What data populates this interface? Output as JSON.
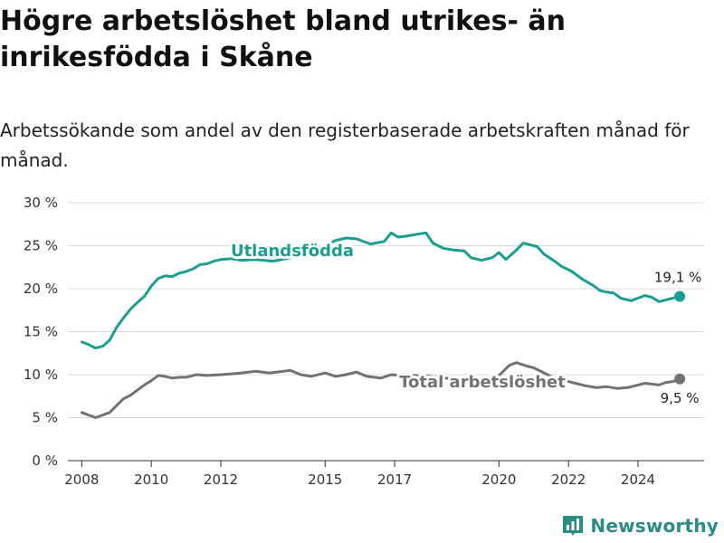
{
  "title": "Högre arbetslöshet bland utrikes- än inrikesfödda i Skåne",
  "subtitle": "Arbetssökande som andel av den registerbaserade arbetskraften månad för månad.",
  "brand": "Newsworthy",
  "colors": {
    "utlandsfodda": "#1a9e91",
    "total": "#727176",
    "grid": "#d9d9d9"
  },
  "chart_data": {
    "type": "line",
    "title": "Högre arbetslöshet bland utrikes- än inrikesfödda i Skåne",
    "subtitle": "Arbetssökande som andel av den registerbaserade arbetskraften månad för månad.",
    "xlabel": "",
    "ylabel": "",
    "xlim": [
      2007.6,
      2025.9
    ],
    "ylim": [
      0,
      30
    ],
    "yticks": [
      0,
      5,
      10,
      15,
      20,
      25,
      30
    ],
    "ytick_labels": [
      "0 %",
      "5 %",
      "10 %",
      "15 %",
      "20 %",
      "25 %",
      "30 %"
    ],
    "xticks": [
      2008,
      2010,
      2012,
      2015,
      2017,
      2020,
      2022,
      2024
    ],
    "xtick_labels": [
      "2008",
      "2010",
      "2012",
      "2015",
      "2017",
      "2020",
      "2022",
      "2024"
    ],
    "grid": true,
    "series": [
      {
        "name": "Utlandsfödda",
        "color": "#1a9e91",
        "end_label": "19,1 %",
        "points": [
          [
            2008.0,
            13.8
          ],
          [
            2008.2,
            13.5
          ],
          [
            2008.4,
            13.1
          ],
          [
            2008.6,
            13.3
          ],
          [
            2008.8,
            14.0
          ],
          [
            2009.0,
            15.5
          ],
          [
            2009.2,
            16.6
          ],
          [
            2009.4,
            17.6
          ],
          [
            2009.6,
            18.4
          ],
          [
            2009.8,
            19.1
          ],
          [
            2010.0,
            20.3
          ],
          [
            2010.2,
            21.2
          ],
          [
            2010.4,
            21.5
          ],
          [
            2010.6,
            21.4
          ],
          [
            2010.8,
            21.8
          ],
          [
            2011.0,
            22.0
          ],
          [
            2011.2,
            22.3
          ],
          [
            2011.4,
            22.8
          ],
          [
            2011.6,
            22.9
          ],
          [
            2011.8,
            23.2
          ],
          [
            2012.0,
            23.4
          ],
          [
            2012.3,
            23.5
          ],
          [
            2012.6,
            23.3
          ],
          [
            2013.0,
            23.4
          ],
          [
            2013.5,
            23.2
          ],
          [
            2014.0,
            23.6
          ],
          [
            2014.5,
            24.4
          ],
          [
            2015.0,
            25.0
          ],
          [
            2015.3,
            25.6
          ],
          [
            2015.6,
            25.9
          ],
          [
            2015.9,
            25.8
          ],
          [
            2016.3,
            25.2
          ],
          [
            2016.7,
            25.5
          ],
          [
            2016.9,
            26.5
          ],
          [
            2017.1,
            26.0
          ],
          [
            2017.3,
            26.1
          ],
          [
            2017.6,
            26.3
          ],
          [
            2017.9,
            26.5
          ],
          [
            2018.1,
            25.3
          ],
          [
            2018.4,
            24.7
          ],
          [
            2018.7,
            24.5
          ],
          [
            2019.0,
            24.4
          ],
          [
            2019.2,
            23.6
          ],
          [
            2019.5,
            23.3
          ],
          [
            2019.8,
            23.6
          ],
          [
            2020.0,
            24.2
          ],
          [
            2020.2,
            23.4
          ],
          [
            2020.5,
            24.5
          ],
          [
            2020.7,
            25.3
          ],
          [
            2020.9,
            25.1
          ],
          [
            2021.1,
            24.9
          ],
          [
            2021.3,
            24.0
          ],
          [
            2021.6,
            23.2
          ],
          [
            2021.8,
            22.6
          ],
          [
            2022.1,
            22.0
          ],
          [
            2022.4,
            21.1
          ],
          [
            2022.7,
            20.4
          ],
          [
            2022.9,
            19.8
          ],
          [
            2023.1,
            19.6
          ],
          [
            2023.3,
            19.5
          ],
          [
            2023.5,
            18.9
          ],
          [
            2023.8,
            18.6
          ],
          [
            2024.0,
            18.9
          ],
          [
            2024.2,
            19.2
          ],
          [
            2024.4,
            19.0
          ],
          [
            2024.6,
            18.5
          ],
          [
            2024.8,
            18.7
          ],
          [
            2025.0,
            18.9
          ],
          [
            2025.2,
            19.1
          ]
        ]
      },
      {
        "name": "Total arbetslöshet",
        "color": "#727176",
        "end_label": "9,5 %",
        "points": [
          [
            2008.0,
            5.6
          ],
          [
            2008.2,
            5.3
          ],
          [
            2008.4,
            5.0
          ],
          [
            2008.6,
            5.3
          ],
          [
            2008.8,
            5.6
          ],
          [
            2009.0,
            6.4
          ],
          [
            2009.2,
            7.2
          ],
          [
            2009.4,
            7.6
          ],
          [
            2009.6,
            8.2
          ],
          [
            2009.8,
            8.8
          ],
          [
            2010.0,
            9.3
          ],
          [
            2010.2,
            9.9
          ],
          [
            2010.4,
            9.8
          ],
          [
            2010.6,
            9.6
          ],
          [
            2010.8,
            9.7
          ],
          [
            2011.0,
            9.7
          ],
          [
            2011.3,
            10.0
          ],
          [
            2011.6,
            9.9
          ],
          [
            2012.0,
            10.0
          ],
          [
            2012.3,
            10.1
          ],
          [
            2012.6,
            10.2
          ],
          [
            2013.0,
            10.4
          ],
          [
            2013.4,
            10.2
          ],
          [
            2013.8,
            10.4
          ],
          [
            2014.0,
            10.5
          ],
          [
            2014.3,
            10.0
          ],
          [
            2014.6,
            9.8
          ],
          [
            2015.0,
            10.2
          ],
          [
            2015.3,
            9.8
          ],
          [
            2015.6,
            10.0
          ],
          [
            2015.9,
            10.3
          ],
          [
            2016.2,
            9.8
          ],
          [
            2016.6,
            9.6
          ],
          [
            2016.9,
            10.0
          ],
          [
            2017.2,
            9.9
          ],
          [
            2017.6,
            9.9
          ],
          [
            2018.0,
            9.8
          ],
          [
            2018.4,
            9.6
          ],
          [
            2018.8,
            9.5
          ],
          [
            2019.2,
            9.4
          ],
          [
            2019.6,
            9.5
          ],
          [
            2020.0,
            9.9
          ],
          [
            2020.3,
            11.1
          ],
          [
            2020.5,
            11.4
          ],
          [
            2020.8,
            11.0
          ],
          [
            2021.0,
            10.8
          ],
          [
            2021.3,
            10.2
          ],
          [
            2021.6,
            9.6
          ],
          [
            2021.9,
            9.3
          ],
          [
            2022.2,
            9.0
          ],
          [
            2022.5,
            8.7
          ],
          [
            2022.8,
            8.5
          ],
          [
            2023.1,
            8.6
          ],
          [
            2023.4,
            8.4
          ],
          [
            2023.7,
            8.5
          ],
          [
            2024.0,
            8.8
          ],
          [
            2024.2,
            9.0
          ],
          [
            2024.4,
            8.9
          ],
          [
            2024.6,
            8.8
          ],
          [
            2024.8,
            9.1
          ],
          [
            2025.0,
            9.2
          ],
          [
            2025.2,
            9.5
          ]
        ]
      }
    ]
  }
}
